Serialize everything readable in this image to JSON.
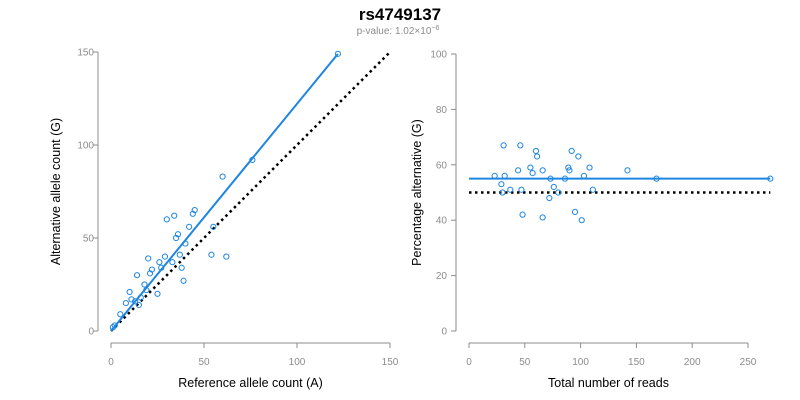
{
  "title": "rs4749137",
  "subtitle": "p-value: 1.02×10",
  "subtitle_exponent": "−6",
  "colors": {
    "points": "#1f86e0",
    "fit": "#1f86e0",
    "reference": "#000000",
    "axis": "#8c8c8c"
  },
  "chart_data": [
    {
      "type": "scatter",
      "xlabel": "Reference allele count (A)",
      "ylabel": "Alternative allele count (G)",
      "xlim": [
        0,
        150
      ],
      "ylim": [
        0,
        150
      ],
      "xticks": [
        0,
        50,
        100,
        150
      ],
      "yticks": [
        0,
        50,
        100,
        150
      ],
      "grid": false,
      "x": [
        1,
        2,
        5,
        8,
        10,
        11,
        13,
        14,
        15,
        16,
        18,
        19,
        20,
        21,
        22,
        25,
        26,
        27,
        29,
        30,
        33,
        34,
        35,
        36,
        37,
        38,
        39,
        40,
        42,
        44,
        45,
        54,
        55,
        60,
        62,
        76,
        122
      ],
      "y": [
        2,
        3,
        9,
        15,
        21,
        17,
        16,
        30,
        14,
        18,
        25,
        22,
        39,
        31,
        33,
        20,
        37,
        34,
        40,
        60,
        37,
        62,
        50,
        52,
        41,
        34,
        27,
        47,
        56,
        63,
        65,
        41,
        56,
        83,
        40,
        92,
        149
      ],
      "fit_line": {
        "from": [
          0,
          0
        ],
        "to": [
          122,
          149
        ]
      },
      "reference_line": {
        "from": [
          0,
          0
        ],
        "to": [
          150,
          150
        ]
      }
    },
    {
      "type": "scatter",
      "xlabel": "Total number of reads",
      "ylabel": "Percentage alternative (G)",
      "xlim": [
        0,
        250
      ],
      "ylim": [
        0,
        100
      ],
      "xticks": [
        0,
        50,
        100,
        150,
        200,
        250
      ],
      "yticks": [
        0,
        20,
        40,
        60,
        80,
        100
      ],
      "grid": false,
      "x": [
        23,
        29,
        30,
        31,
        32,
        37,
        44,
        46,
        47,
        48,
        55,
        57,
        60,
        61,
        66,
        66,
        72,
        73,
        76,
        80,
        86,
        89,
        90,
        92,
        95,
        98,
        101,
        103,
        108,
        111,
        142,
        168,
        270
      ],
      "y": [
        56,
        53,
        50,
        67,
        56,
        51,
        58,
        67,
        51,
        42,
        59,
        57,
        65,
        63,
        41,
        58,
        48,
        55,
        52,
        50,
        55,
        59,
        58,
        65,
        43,
        63,
        40,
        56,
        59,
        51,
        58,
        55,
        55
      ],
      "fit_line": {
        "from": [
          0,
          55
        ],
        "to": [
          270,
          55
        ]
      },
      "reference_line": {
        "from": [
          0,
          50
        ],
        "to": [
          270,
          50
        ]
      }
    }
  ]
}
